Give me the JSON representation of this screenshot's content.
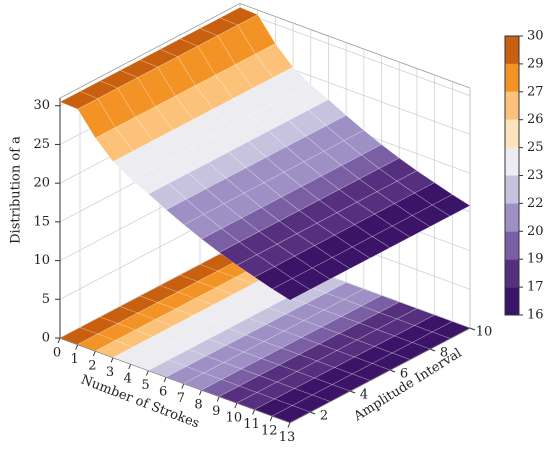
{
  "chart_data": {
    "type": "surface3d",
    "xlabel": "Number of Strokes",
    "ylabel": "Amplitude Interval",
    "zlabel": "Distribution of a",
    "x": [
      0,
      1,
      2,
      3,
      4,
      5,
      6,
      7,
      8,
      9,
      10,
      11,
      12,
      13
    ],
    "z": [
      30.5,
      30.4,
      27.5,
      25.3,
      23.9,
      22.8,
      21.6,
      20.5,
      19.5,
      18.6,
      17.8,
      17.1,
      16.4,
      15.8
    ],
    "xlim": [
      0,
      13
    ],
    "ylim": [
      1,
      10
    ],
    "zlim": [
      0,
      31
    ],
    "xticks": [
      0,
      1,
      2,
      3,
      4,
      5,
      6,
      7,
      8,
      9,
      10,
      11,
      12,
      13
    ],
    "yticks": [
      2,
      4,
      6,
      8,
      10
    ],
    "zticks": [
      0,
      5,
      10,
      15,
      20,
      25,
      30
    ],
    "grid": true,
    "colorbar": {
      "levels": [
        16,
        17,
        19,
        20,
        22,
        23,
        25,
        26,
        27,
        29,
        30
      ],
      "colors": [
        "#3b1468",
        "#56307f",
        "#7a5fa5",
        "#9e90c4",
        "#c7c3de",
        "#ececf1",
        "#fde3bd",
        "#fdc27a",
        "#f39325",
        "#c8600f"
      ]
    }
  }
}
